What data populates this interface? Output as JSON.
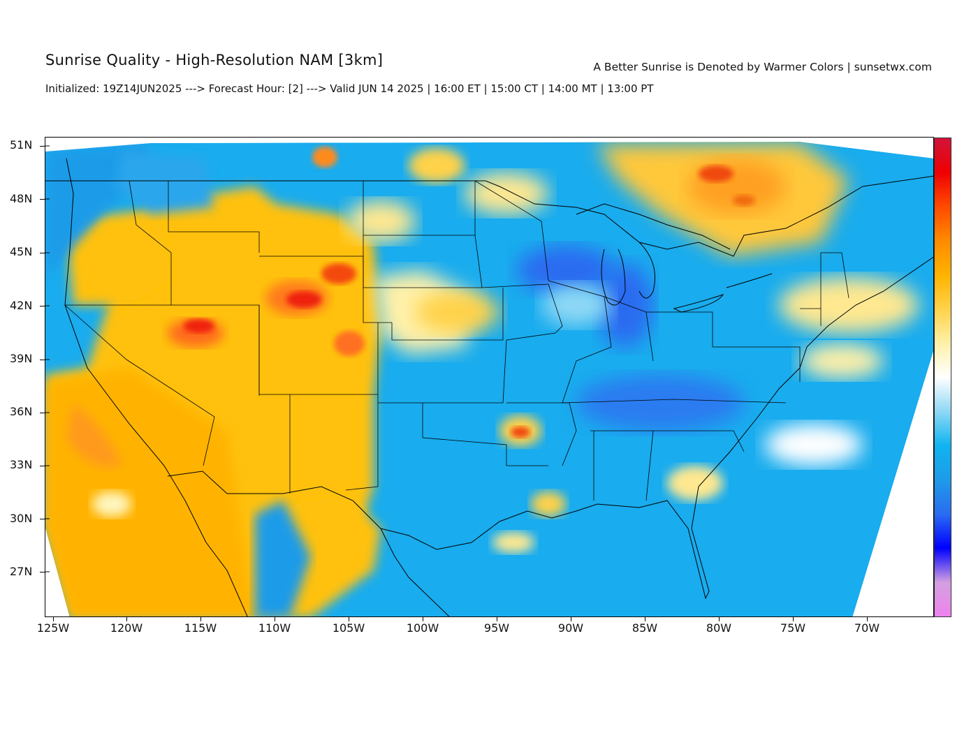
{
  "header": {
    "title": "Sunrise Quality - High-Resolution NAM [3km]",
    "tagline": "A Better Sunrise is Denoted by Warmer Colors | sunsetwx.com",
    "subtitle": "Initialized: 19Z14JUN2025 ---> Forecast Hour: [2] ---> Valid JUN 14 2025 | 16:00 ET | 15:00 CT | 14:00 MT | 13:00 PT"
  },
  "axes": {
    "lat_labels": [
      "51N",
      "48N",
      "45N",
      "42N",
      "39N",
      "36N",
      "33N",
      "30N",
      "27N"
    ],
    "lon_labels": [
      "125W",
      "120W",
      "115W",
      "110W",
      "105W",
      "100W",
      "95W",
      "90W",
      "85W",
      "80W",
      "75W",
      "70W"
    ]
  },
  "map": {
    "extent": {
      "lon_min": -125.8,
      "lon_max": -65.6,
      "lat_min": 24.5,
      "lat_max": 51.5
    },
    "colorscale": [
      "#ee82ee",
      "#d4a0e0",
      "#0000ff",
      "#2a6cf0",
      "#1e9be8",
      "#0fb4f0",
      "#8fd8f5",
      "#ffffff",
      "#fff0a8",
      "#ffd24a",
      "#ffb300",
      "#ff8a00",
      "#ff4a00",
      "#ee0000",
      "#d2143c"
    ]
  }
}
